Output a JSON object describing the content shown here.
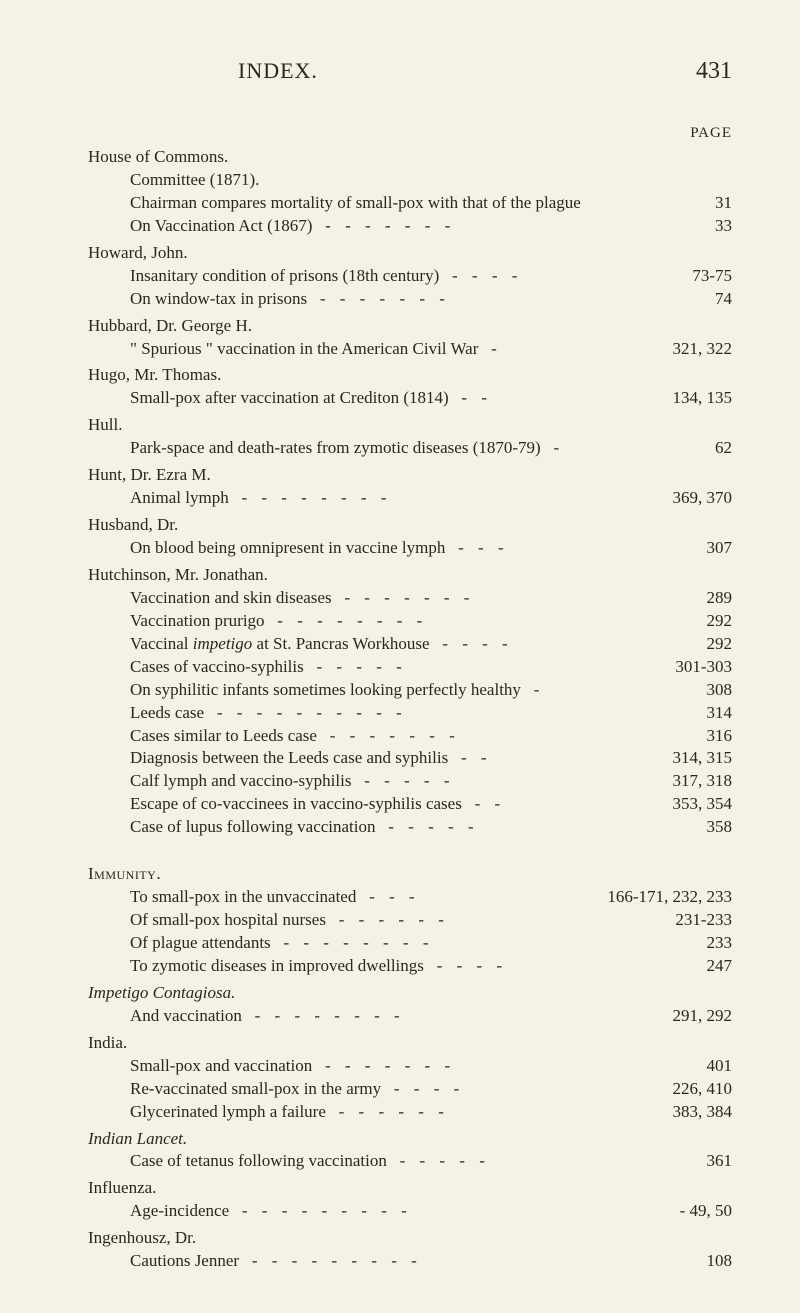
{
  "colors": {
    "background": "#f5f1e4",
    "text": "#2a2620"
  },
  "header": {
    "title": "INDEX.",
    "page_number": "431"
  },
  "page_label": "PAGE",
  "blocks": [
    {
      "heading": "House of Commons.",
      "sub": [
        {
          "text": "Committee (1871).",
          "pages": ""
        },
        {
          "text": "Chairman compares mortality of small-pox with that of the plague",
          "pages": "31",
          "no_dash": true
        },
        {
          "text": "On Vaccination Act (1867)",
          "pages": "33",
          "dashes": 7
        }
      ]
    },
    {
      "heading": "Howard, John.",
      "sub": [
        {
          "text": "Insanitary condition of prisons (18th century)",
          "pages": "73-75",
          "dashes": 4
        },
        {
          "text": "On window-tax in prisons",
          "pages": "74",
          "dashes": 7
        }
      ]
    },
    {
      "heading": "Hubbard, Dr. George H.",
      "sub": [
        {
          "text": "\" Spurious \" vaccination in the American Civil War",
          "pages": "321, 322",
          "dashes": 1,
          "wide": true
        }
      ]
    },
    {
      "heading": "Hugo, Mr. Thomas.",
      "sub": [
        {
          "text": "Small-pox after vaccination at Crediton (1814)",
          "pages": "134, 135",
          "dashes": 2,
          "wide": true
        }
      ]
    },
    {
      "heading": "Hull.",
      "sub": [
        {
          "text": "Park-space and death-rates from zymotic diseases (1870-79)",
          "pages": "62",
          "dashes": 1
        }
      ]
    },
    {
      "heading": "Hunt, Dr. Ezra M.",
      "sub": [
        {
          "text": "Animal lymph",
          "pages": "369, 370",
          "dashes": 8,
          "wide": true
        }
      ]
    },
    {
      "heading": "Husband, Dr.",
      "sub": [
        {
          "text": "On blood being omnipresent in vaccine lymph",
          "pages": "307",
          "dashes": 3
        }
      ]
    },
    {
      "heading": "Hutchinson, Mr. Jonathan.",
      "sub": [
        {
          "text": "Vaccination and skin diseases",
          "pages": "289",
          "dashes": 7
        },
        {
          "text": "Vaccination prurigo",
          "pages": "292",
          "dashes": 8
        },
        {
          "text": "Vaccinal <em>impetigo</em> at St. Pancras Workhouse",
          "pages": "292",
          "dashes": 4
        },
        {
          "text": "Cases of vaccino-syphilis",
          "pages": "301-303",
          "dashes": 5,
          "wide": true
        },
        {
          "text": "On syphilitic infants sometimes looking perfectly healthy",
          "pages": "308",
          "dashes": 1
        },
        {
          "text": "Leeds case",
          "pages": "314",
          "dashes": 10
        },
        {
          "text": "Cases similar to Leeds case",
          "pages": "316",
          "dashes": 7
        },
        {
          "text": "Diagnosis between the Leeds case and syphilis",
          "pages": "314, 315",
          "dashes": 2,
          "wide": true
        },
        {
          "text": "Calf lymph and vaccino-syphilis",
          "pages": "317, 318",
          "dashes": 5,
          "wide": true
        },
        {
          "text": "Escape of co-vaccinees in vaccino-syphilis cases",
          "pages": "353, 354",
          "dashes": 2,
          "wide": true
        },
        {
          "text": "Case of lupus following vaccination",
          "pages": "358",
          "dashes": 5
        }
      ]
    },
    {
      "gap": true
    },
    {
      "heading_sc": "Immunity.",
      "sub": [
        {
          "text": "To small-pox in the unvaccinated",
          "pages": "166-171, 232, 233",
          "dashes": 3,
          "xwide": true
        },
        {
          "text": "Of small-pox hospital nurses",
          "pages": "231-233",
          "dashes": 6,
          "wide": true
        },
        {
          "text": "Of plague attendants",
          "pages": "233",
          "dashes": 8
        },
        {
          "text": "To zymotic diseases in improved dwellings",
          "pages": "247",
          "dashes": 4
        }
      ]
    },
    {
      "heading_it": "Impetigo Contagiosa.",
      "sub": [
        {
          "text": "And vaccination",
          "pages": "291, 292",
          "dashes": 8,
          "wide": true
        }
      ]
    },
    {
      "heading": "India.",
      "sub": [
        {
          "text": "Small-pox and vaccination",
          "pages": "401",
          "dashes": 7
        },
        {
          "text": "Re-vaccinated small-pox in the army",
          "pages": "226, 410",
          "dashes": 4,
          "wide": true
        },
        {
          "text": "Glycerinated lymph a failure",
          "pages": "383, 384",
          "dashes": 6,
          "wide": true
        }
      ]
    },
    {
      "heading_it": "Indian Lancet.",
      "sub": [
        {
          "text": "Case of tetanus following vaccination",
          "pages": "361",
          "dashes": 5
        }
      ]
    },
    {
      "heading": "Influenza.",
      "sub": [
        {
          "text": "Age-incidence",
          "pages": "49, 50",
          "dashes": 9,
          "pre_dash": true
        }
      ]
    },
    {
      "heading": "Ingenhousz, Dr.",
      "sub": [
        {
          "text": "Cautions Jenner",
          "pages": "108",
          "dashes": 9
        }
      ]
    }
  ]
}
